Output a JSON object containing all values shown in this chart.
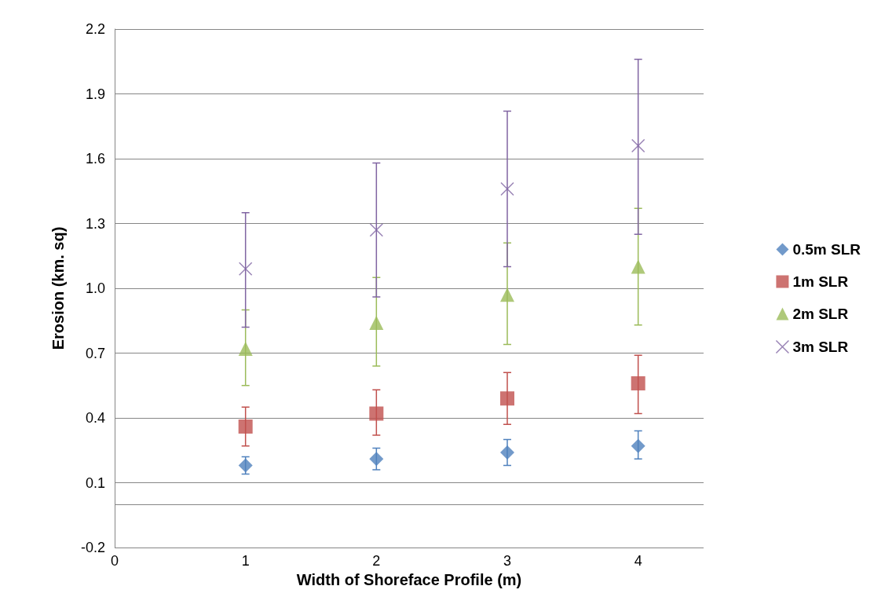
{
  "chart_data": {
    "type": "scatter",
    "xlabel": "Width of Shoreface Profile (m)",
    "ylabel": "Erosion (km. sq)",
    "x": [
      1,
      2,
      3,
      4
    ],
    "xlim": [
      0,
      4.5
    ],
    "xticks": [
      0,
      1,
      2,
      3,
      4
    ],
    "ylim": [
      -0.2,
      2.2
    ],
    "yticks": [
      -0.2,
      0.1,
      0.4,
      0.7,
      {
        "value": 1,
        "label": "1.0"
      },
      1.3,
      1.6,
      1.9,
      2.2
    ],
    "ref_lines": [
      {
        "axis": "y",
        "value": 0,
        "color": "#868686"
      }
    ],
    "grid": "y",
    "legend": "right",
    "series": [
      {
        "name": "0.5m SLR",
        "color": "#4f81bd",
        "marker": "diamond",
        "values": [
          0.18,
          0.21,
          0.24,
          0.27
        ],
        "errors": [
          [
            0.14,
            0.22
          ],
          [
            0.16,
            0.26
          ],
          [
            0.18,
            0.3
          ],
          [
            0.21,
            0.34
          ]
        ]
      },
      {
        "name": "1m SLR",
        "color": "#c0504d",
        "marker": "square",
        "values": [
          0.36,
          0.42,
          0.49,
          0.56
        ],
        "errors": [
          [
            0.27,
            0.45
          ],
          [
            0.32,
            0.53
          ],
          [
            0.37,
            0.61
          ],
          [
            0.42,
            0.69
          ]
        ]
      },
      {
        "name": "2m SLR",
        "color": "#9bbb59",
        "marker": "triangle",
        "values": [
          0.72,
          0.84,
          0.97,
          1.1
        ],
        "errors": [
          [
            0.55,
            0.9
          ],
          [
            0.64,
            1.05
          ],
          [
            0.74,
            1.21
          ],
          [
            0.83,
            1.37
          ]
        ]
      },
      {
        "name": "3m SLR",
        "color": "#8064a2",
        "marker": "cross",
        "values": [
          1.09,
          1.27,
          1.46,
          1.66
        ],
        "errors": [
          [
            0.82,
            1.35
          ],
          [
            0.96,
            1.58
          ],
          [
            1.1,
            1.82
          ],
          [
            1.25,
            2.06
          ]
        ]
      }
    ]
  }
}
